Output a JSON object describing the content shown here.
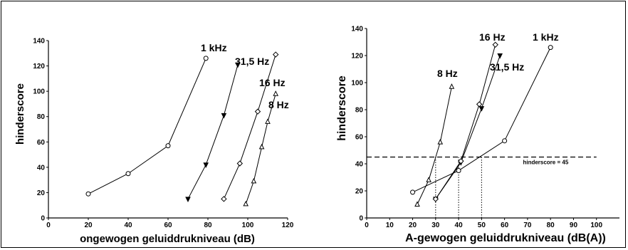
{
  "chart_data": [
    {
      "type": "line",
      "xlabel": "ongewogen geluiddrukniveau (dB)",
      "ylabel": "hinderscore",
      "xlim": [
        0,
        120
      ],
      "ylim": [
        0,
        140
      ],
      "xticks": [
        "0",
        "20",
        "40",
        "60",
        "80",
        "100",
        "120"
      ],
      "yticks": [
        "0",
        "20",
        "40",
        "60",
        "80",
        "100",
        "120",
        "140"
      ],
      "grid": false,
      "series": [
        {
          "name": "1 kHz",
          "marker": "circle",
          "x": [
            20,
            40,
            60,
            79
          ],
          "y": [
            19,
            35,
            57,
            126
          ]
        },
        {
          "name": "31,5 Hz",
          "marker": "triangle-down",
          "x": [
            70,
            79,
            88,
            95
          ],
          "y": [
            15,
            42,
            81,
            121
          ]
        },
        {
          "name": "16 Hz",
          "marker": "diamond",
          "x": [
            88,
            96,
            105,
            114
          ],
          "y": [
            15,
            43,
            84,
            129
          ]
        },
        {
          "name": "8 Hz",
          "marker": "triangle-up",
          "x": [
            99,
            103,
            107,
            110,
            114
          ],
          "y": [
            11,
            29,
            56,
            76,
            98
          ]
        }
      ]
    },
    {
      "type": "line",
      "xlabel": "A-gewogen geluiddrukniveau (dB(A))",
      "ylabel": "hinderscore",
      "xlim": [
        0,
        110
      ],
      "ylim": [
        0,
        140
      ],
      "xticks": [
        "0",
        "10",
        "20",
        "30",
        "40",
        "50",
        "60",
        "70",
        "80",
        "90",
        "100"
      ],
      "yticks": [
        "0",
        "20",
        "40",
        "60",
        "80",
        "100",
        "120",
        "140"
      ],
      "grid": false,
      "series": [
        {
          "name": "1 kHz",
          "marker": "circle",
          "x": [
            20,
            40,
            60,
            80
          ],
          "y": [
            19,
            35,
            57,
            126
          ]
        },
        {
          "name": "31,5 Hz",
          "marker": "triangle-down",
          "x": [
            30,
            41,
            50,
            58
          ],
          "y": [
            14,
            41,
            81,
            120
          ]
        },
        {
          "name": "16 Hz",
          "marker": "diamond",
          "x": [
            30,
            41,
            49,
            56
          ],
          "y": [
            14,
            42,
            84,
            128
          ]
        },
        {
          "name": "8 Hz",
          "marker": "triangle-up",
          "x": [
            22,
            27,
            32,
            37
          ],
          "y": [
            10,
            28,
            56,
            97
          ]
        }
      ],
      "threshold": {
        "y": 45,
        "label": "hinderscore = 45"
      },
      "crossings": [
        30,
        40,
        50
      ]
    }
  ]
}
